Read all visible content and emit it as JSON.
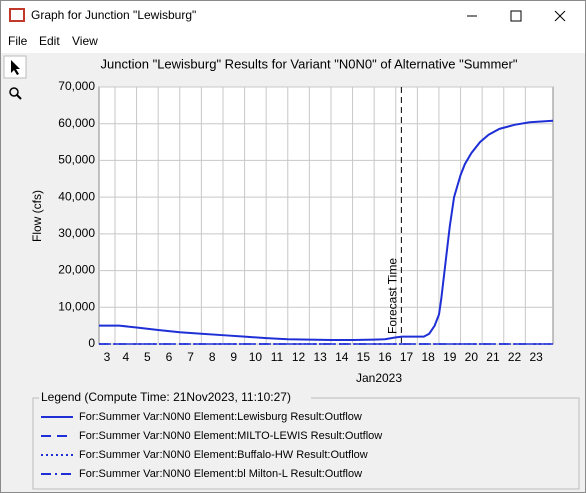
{
  "window": {
    "title": "Graph for Junction \"Lewisburg\"",
    "menu": [
      "File",
      "Edit",
      "View"
    ]
  },
  "chart_data": {
    "type": "line",
    "title": "Junction \"Lewisburg\" Results for Variant \"N0N0\" of Alternative \"Summer\"",
    "y_label": "Flow (cfs)",
    "x_label": "Jan2023",
    "xlim": [
      3.26,
      24.28
    ],
    "xticks": [
      3,
      4,
      5,
      6,
      7,
      8,
      9,
      10,
      11,
      12,
      13,
      14,
      15,
      16,
      17,
      18,
      19,
      20,
      21,
      22,
      23
    ],
    "ylim": [
      0,
      70000
    ],
    "yticks": [
      0,
      {
        "value": 10000,
        "label": "10,000"
      },
      {
        "value": 20000,
        "label": "20,000"
      },
      {
        "value": 30000,
        "label": "30,000"
      },
      {
        "value": 40000,
        "label": "40,000"
      },
      {
        "value": 50000,
        "label": "50,000"
      },
      {
        "value": 60000,
        "label": "60,000"
      },
      {
        "value": 70000,
        "label": "70,000"
      }
    ],
    "grid": true,
    "forecast_time": {
      "x": 17.26,
      "label": "Forecast Time"
    },
    "legend_title": "Legend (Compute Time: 21Nov2023, 11:10:27)",
    "series": [
      {
        "name": "For:Summer Var:N0N0 Element:Lewisburg Result:Outflow",
        "color": "#1f2fd6",
        "dash": "solid",
        "x": [
          3.26,
          4.2,
          5,
          6,
          7,
          8,
          9,
          10,
          11,
          12,
          13,
          14,
          15,
          16,
          16.5,
          17,
          17.3,
          18.3,
          18.55,
          18.8,
          19,
          19.1,
          19.3,
          19.5,
          19.7,
          20,
          20.2,
          20.5,
          20.9,
          21.3,
          21.8,
          22.5,
          23.2,
          24.28
        ],
        "values": [
          5000,
          5000,
          4500,
          3800,
          3200,
          2800,
          2400,
          2000,
          1600,
          1300,
          1200,
          1100,
          1100,
          1200,
          1300,
          1800,
          2000,
          2000,
          2800,
          5000,
          8000,
          12000,
          22000,
          32000,
          40000,
          46000,
          49000,
          52000,
          55000,
          57000,
          58600,
          59700,
          60400,
          60800
        ]
      },
      {
        "name": "For:Summer Var:N0N0 Element:MILTO-LEWIS Result:Outflow",
        "color": "#1f2fd6",
        "dash": "dashed",
        "x": [
          3.26,
          24.28
        ],
        "values": [
          0,
          0
        ]
      },
      {
        "name": "For:Summer Var:N0N0 Element:Buffalo-HW Result:Outflow",
        "color": "#1f2fd6",
        "dash": "dotted",
        "x": [
          3.26,
          24.28
        ],
        "values": [
          0,
          0
        ]
      },
      {
        "name": "For:Summer Var:N0N0 Element:bl Milton-L Result:Outflow",
        "color": "#1f2fd6",
        "dash": "dashdot",
        "x": [
          3.26,
          24.28
        ],
        "values": [
          0,
          0
        ]
      }
    ]
  }
}
